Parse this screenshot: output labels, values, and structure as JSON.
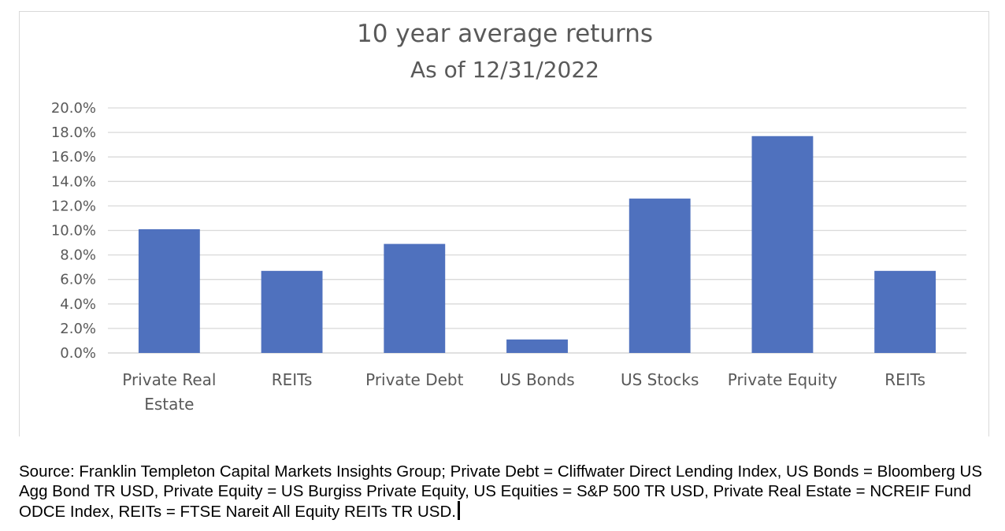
{
  "chart_data": {
    "type": "bar",
    "title": "10 year average returns",
    "subtitle": "As of 12/31/2022",
    "categories": [
      "Private Real Estate",
      "REITs",
      "Private Debt",
      "US Bonds",
      "US Stocks",
      "Private Equity",
      "REITs"
    ],
    "category_lines": [
      [
        "Private Real",
        "Estate"
      ],
      [
        "REITs"
      ],
      [
        "Private Debt"
      ],
      [
        "US Bonds"
      ],
      [
        "US Stocks"
      ],
      [
        "Private Equity"
      ],
      [
        "REITs"
      ]
    ],
    "values": [
      10.1,
      6.7,
      8.9,
      1.1,
      12.6,
      17.7,
      6.7
    ],
    "ylim": [
      0,
      20
    ],
    "yticks": [
      0,
      2,
      4,
      6,
      8,
      10,
      12,
      14,
      16,
      18,
      20
    ],
    "ytick_labels": [
      "0.0%",
      "2.0%",
      "4.0%",
      "6.0%",
      "8.0%",
      "10.0%",
      "12.0%",
      "14.0%",
      "16.0%",
      "18.0%",
      "20.0%"
    ],
    "xlabel": "",
    "ylabel": "",
    "grid": true,
    "bar_color": "#4f71be",
    "grid_color": "#d9d9d9"
  },
  "source_note": "Source: Franklin Templeton Capital Markets Insights Group; Private Debt = Cliffwater Direct Lending Index, US Bonds = Bloomberg US Agg Bond TR USD, Private Equity = US Burgiss Private Equity, US Equities = S&P 500 TR USD, Private Real Estate = NCREIF Fund ODCE Index, REITs = FTSE Nareit All Equity REITs TR USD."
}
